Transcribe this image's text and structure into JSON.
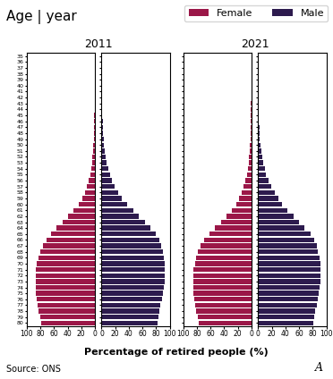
{
  "chart_data": [
    {
      "type": "bar",
      "orientation": "horizontal",
      "title": "2011",
      "categories": [
        "35",
        "36",
        "37",
        "38",
        "39",
        "40",
        "41",
        "42",
        "43",
        "44",
        "45",
        "46",
        "47",
        "48",
        "49",
        "50",
        "51",
        "52",
        "53",
        "54",
        "55",
        "56",
        "57",
        "58",
        "59",
        "60",
        "61",
        "62",
        "63",
        "64",
        "65",
        "66",
        "67",
        "68",
        "69",
        "70",
        "71",
        "72",
        "73",
        "74",
        "75",
        "76",
        "77",
        "78",
        "79",
        "80"
      ],
      "series": [
        {
          "name": "Female",
          "color": "#9b1748",
          "values": [
            0.2,
            0.2,
            0.2,
            0.2,
            0.3,
            0.3,
            0.4,
            0.4,
            0.5,
            0.6,
            0.7,
            0.9,
            1.1,
            1.4,
            1.7,
            2.1,
            2.7,
            3.4,
            4.3,
            5.5,
            7.0,
            9.0,
            11.5,
            14.5,
            18.5,
            24.0,
            31.0,
            39.0,
            47.0,
            56.0,
            64.0,
            71.0,
            76.0,
            80.0,
            83.0,
            85.0,
            86.0,
            87.0,
            87.0,
            87.0,
            86.5,
            85.5,
            84.0,
            82.5,
            80.5,
            78.5
          ]
        },
        {
          "name": "Male",
          "color": "#2d1b4e",
          "values": [
            0.2,
            0.2,
            0.3,
            0.3,
            0.4,
            0.4,
            0.5,
            0.6,
            0.7,
            0.9,
            1.1,
            1.4,
            1.8,
            2.2,
            2.8,
            3.5,
            4.5,
            5.8,
            7.5,
            9.5,
            12.0,
            15.5,
            19.5,
            24.5,
            30.0,
            37.0,
            46.0,
            55.0,
            63.0,
            71.0,
            79.0,
            84.0,
            87.5,
            89.5,
            91.0,
            92.0,
            92.5,
            92.5,
            92.0,
            91.0,
            89.5,
            88.0,
            86.5,
            85.0,
            83.5,
            82.0
          ]
        }
      ],
      "xlim": [
        0,
        100
      ],
      "xticks": [
        0,
        20,
        40,
        60,
        80,
        100
      ]
    },
    {
      "type": "bar",
      "orientation": "horizontal",
      "title": "2021",
      "categories": [
        "35",
        "36",
        "37",
        "38",
        "39",
        "40",
        "41",
        "42",
        "43",
        "44",
        "45",
        "46",
        "47",
        "48",
        "49",
        "50",
        "51",
        "52",
        "53",
        "54",
        "55",
        "56",
        "57",
        "58",
        "59",
        "60",
        "61",
        "62",
        "63",
        "64",
        "65",
        "66",
        "67",
        "68",
        "69",
        "70",
        "71",
        "72",
        "73",
        "74",
        "75",
        "76",
        "77",
        "78",
        "79",
        "80"
      ],
      "series": [
        {
          "name": "Female",
          "color": "#9b1748",
          "values": [
            0.2,
            0.2,
            0.2,
            0.2,
            0.3,
            0.3,
            0.4,
            0.4,
            0.5,
            0.6,
            0.7,
            0.9,
            1.1,
            1.4,
            1.7,
            2.1,
            2.7,
            3.4,
            4.3,
            5.5,
            7.0,
            9.0,
            11.5,
            14.5,
            18.5,
            22.0,
            29.0,
            37.0,
            45.0,
            53.0,
            62.0,
            69.0,
            74.0,
            78.0,
            81.0,
            83.0,
            84.5,
            85.5,
            85.5,
            85.5,
            85.0,
            84.0,
            82.5,
            81.0,
            79.0,
            77.0
          ]
        },
        {
          "name": "Male",
          "color": "#2d1b4e",
          "values": [
            0.2,
            0.2,
            0.3,
            0.3,
            0.4,
            0.4,
            0.5,
            0.6,
            0.7,
            0.9,
            1.1,
            1.4,
            1.8,
            2.2,
            2.8,
            3.5,
            4.5,
            5.8,
            7.5,
            9.5,
            12.0,
            15.5,
            19.5,
            24.5,
            30.0,
            35.0,
            43.0,
            52.0,
            60.0,
            68.0,
            77.0,
            82.0,
            85.5,
            88.0,
            90.0,
            91.0,
            91.5,
            91.5,
            91.0,
            90.0,
            88.5,
            87.0,
            85.5,
            84.0,
            82.5,
            81.0
          ]
        }
      ],
      "xlim": [
        0,
        100
      ],
      "xticks": [
        0,
        20,
        40,
        60,
        80,
        100
      ],
      "tick_labels": "x"
    }
  ],
  "title": "Age | year",
  "xlabel": "Percentage of retired people (%)",
  "annotations": [
    "Source: ONS",
    "A"
  ],
  "legend": "upper right"
}
